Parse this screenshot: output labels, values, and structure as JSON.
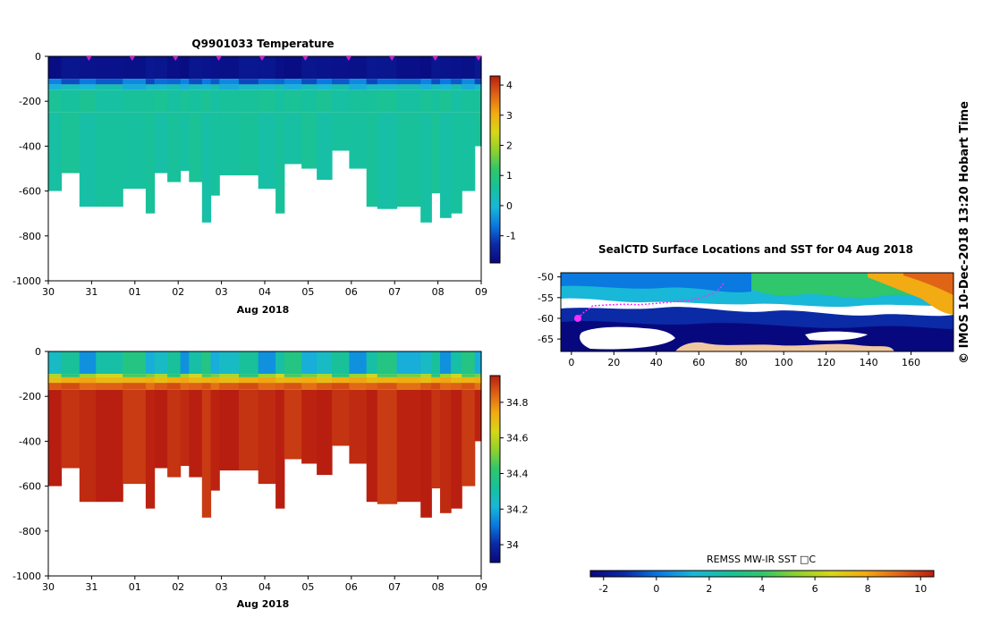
{
  "page": {
    "side_label": "© IMOS 10-Dec-2018 13:20 Hobart Time"
  },
  "chart_data": [
    {
      "id": "temperature-section",
      "type": "heatmap",
      "title": "Q9901033  Temperature",
      "xlabel": "Aug 2018",
      "ylabel": "",
      "x_tick_labels": [
        "30",
        "31",
        "01",
        "02",
        "03",
        "04",
        "05",
        "06",
        "07",
        "08",
        "09"
      ],
      "x_range_days": [
        0,
        10
      ],
      "ylim": [
        -1000,
        0
      ],
      "y_ticks": [
        0,
        -200,
        -400,
        -600,
        -800,
        -1000
      ],
      "colorbar": {
        "min": -1.9,
        "max": 4.3,
        "ticks": [
          -1,
          0,
          1,
          2,
          3,
          4
        ],
        "stops": [
          "#08087e",
          "#0b2aa6",
          "#0a79e0",
          "#19b7d8",
          "#17c19c",
          "#2fc66c",
          "#8ed12d",
          "#d7d717",
          "#f2ab12",
          "#df6416",
          "#b81e10"
        ]
      },
      "profile_markers_day": [
        1,
        2,
        3,
        4,
        5,
        6,
        7,
        8,
        9,
        10
      ],
      "profiles": [
        {
          "t0": 0.0,
          "t1": 0.3,
          "depth": 600,
          "deep": 0.6
        },
        {
          "t0": 0.3,
          "t1": 0.72,
          "depth": 520,
          "deep": 0.6
        },
        {
          "t0": 0.72,
          "t1": 1.1,
          "depth": 670,
          "deep": 0.6
        },
        {
          "t0": 1.1,
          "t1": 1.72,
          "depth": 670,
          "deep": 0.6
        },
        {
          "t0": 1.72,
          "t1": 2.25,
          "depth": 590,
          "deep": 0.6
        },
        {
          "t0": 2.25,
          "t1": 2.45,
          "depth": 700,
          "deep": 0.6
        },
        {
          "t0": 2.45,
          "t1": 2.75,
          "depth": 520,
          "deep": 0.6
        },
        {
          "t0": 2.75,
          "t1": 3.05,
          "depth": 560,
          "deep": 0.6
        },
        {
          "t0": 3.05,
          "t1": 3.25,
          "depth": 510,
          "deep": 0.6
        },
        {
          "t0": 3.25,
          "t1": 3.55,
          "depth": 560,
          "deep": 0.6
        },
        {
          "t0": 3.55,
          "t1": 3.75,
          "depth": 740,
          "deep": 0.6
        },
        {
          "t0": 3.75,
          "t1": 3.95,
          "depth": 620,
          "deep": 0.6
        },
        {
          "t0": 3.95,
          "t1": 4.4,
          "depth": 530,
          "deep": 0.6
        },
        {
          "t0": 4.4,
          "t1": 4.85,
          "depth": 530,
          "deep": 0.6
        },
        {
          "t0": 4.85,
          "t1": 5.25,
          "depth": 590,
          "deep": 0.6
        },
        {
          "t0": 5.25,
          "t1": 5.45,
          "depth": 700,
          "deep": 0.6
        },
        {
          "t0": 5.45,
          "t1": 5.85,
          "depth": 480,
          "deep": 0.6
        },
        {
          "t0": 5.85,
          "t1": 6.2,
          "depth": 500,
          "deep": 0.6
        },
        {
          "t0": 6.2,
          "t1": 6.55,
          "depth": 550,
          "deep": 0.6
        },
        {
          "t0": 6.55,
          "t1": 6.95,
          "depth": 420,
          "deep": 0.6
        },
        {
          "t0": 6.95,
          "t1": 7.35,
          "depth": 500,
          "deep": 0.6
        },
        {
          "t0": 7.35,
          "t1": 7.6,
          "depth": 670,
          "deep": 0.6
        },
        {
          "t0": 7.6,
          "t1": 8.05,
          "depth": 680,
          "deep": 0.6
        },
        {
          "t0": 8.05,
          "t1": 8.6,
          "depth": 670,
          "deep": 0.6
        },
        {
          "t0": 8.6,
          "t1": 8.85,
          "depth": 740,
          "deep": 0.6
        },
        {
          "t0": 8.85,
          "t1": 9.05,
          "depth": 610,
          "deep": 0.6
        },
        {
          "t0": 9.05,
          "t1": 9.3,
          "depth": 720,
          "deep": 0.6
        },
        {
          "t0": 9.3,
          "t1": 9.55,
          "depth": 700,
          "deep": 0.6
        },
        {
          "t0": 9.55,
          "t1": 9.85,
          "depth": 600,
          "deep": 0.6
        },
        {
          "t0": 9.85,
          "t1": 10.0,
          "depth": 400,
          "deep": 0.6
        }
      ],
      "layers": [
        {
          "d0": 0,
          "d1": 100,
          "value": -1.8
        },
        {
          "d0": 100,
          "d1": 125,
          "value": -0.8
        },
        {
          "d0": 125,
          "d1": 150,
          "value": 0.1
        },
        {
          "d0": 150,
          "d1": 250,
          "value": 0.6
        },
        {
          "d0": 250,
          "d1": 1000,
          "value": 0.55
        }
      ]
    },
    {
      "id": "salinity-section",
      "type": "heatmap",
      "title": "",
      "xlabel": "Aug 2018",
      "ylabel": "",
      "x_tick_labels": [
        "30",
        "31",
        "01",
        "02",
        "03",
        "04",
        "05",
        "06",
        "07",
        "08",
        "09"
      ],
      "x_range_days": [
        0,
        10
      ],
      "ylim": [
        -1000,
        0
      ],
      "y_ticks": [
        0,
        -200,
        -400,
        -600,
        -800,
        -1000
      ],
      "colorbar": {
        "min": 33.9,
        "max": 34.95,
        "ticks": [
          34,
          34.2,
          34.4,
          34.6,
          34.8
        ],
        "tick_labels": [
          "34",
          "34.2",
          "34.4",
          "34.6",
          "34.8"
        ],
        "stops": [
          "#08087e",
          "#0b2aa6",
          "#0a79e0",
          "#19b7d8",
          "#17c19c",
          "#2fc66c",
          "#8ed12d",
          "#d7d717",
          "#f2ab12",
          "#df6416",
          "#b81e10"
        ]
      },
      "layers": [
        {
          "d0": 0,
          "d1": 100,
          "value": 34.25
        },
        {
          "d0": 100,
          "d1": 115,
          "value": 34.5
        },
        {
          "d0": 115,
          "d1": 140,
          "value": 34.72
        },
        {
          "d0": 140,
          "d1": 170,
          "value": 34.85
        },
        {
          "d0": 170,
          "d1": 1000,
          "value": 34.93
        }
      ]
    },
    {
      "id": "sst-map",
      "type": "heatmap",
      "title": "SealCTD Surface Locations and SST for 04 Aug 2018",
      "xlabel": "",
      "ylabel": "",
      "x_ticks": [
        0,
        20,
        40,
        60,
        80,
        100,
        120,
        140,
        160
      ],
      "y_ticks": [
        -50,
        -55,
        -60,
        -65
      ],
      "xlim": [
        -5,
        180
      ],
      "ylim": [
        -68,
        -49
      ],
      "colorbar": {
        "title": "REMSS MW-IR SST □C",
        "min": -2.5,
        "max": 10.5,
        "ticks": [
          -2,
          0,
          2,
          4,
          6,
          8,
          10
        ],
        "stops": [
          "#08087e",
          "#0b2aa6",
          "#0a79e0",
          "#19b7d8",
          "#17c19c",
          "#2fc66c",
          "#8ed12d",
          "#d7d717",
          "#f2ab12",
          "#df6416",
          "#b81e10"
        ]
      },
      "track": [
        [
          3,
          -60
        ],
        [
          6,
          -58.5
        ],
        [
          10,
          -57
        ],
        [
          16,
          -56.8
        ],
        [
          24,
          -56.6
        ],
        [
          32,
          -56.7
        ],
        [
          40,
          -56.4
        ],
        [
          48,
          -56
        ],
        [
          56,
          -55.6
        ],
        [
          62,
          -54.9
        ],
        [
          67,
          -53.9
        ],
        [
          70,
          -52.8
        ],
        [
          72,
          -51.3
        ]
      ]
    }
  ]
}
